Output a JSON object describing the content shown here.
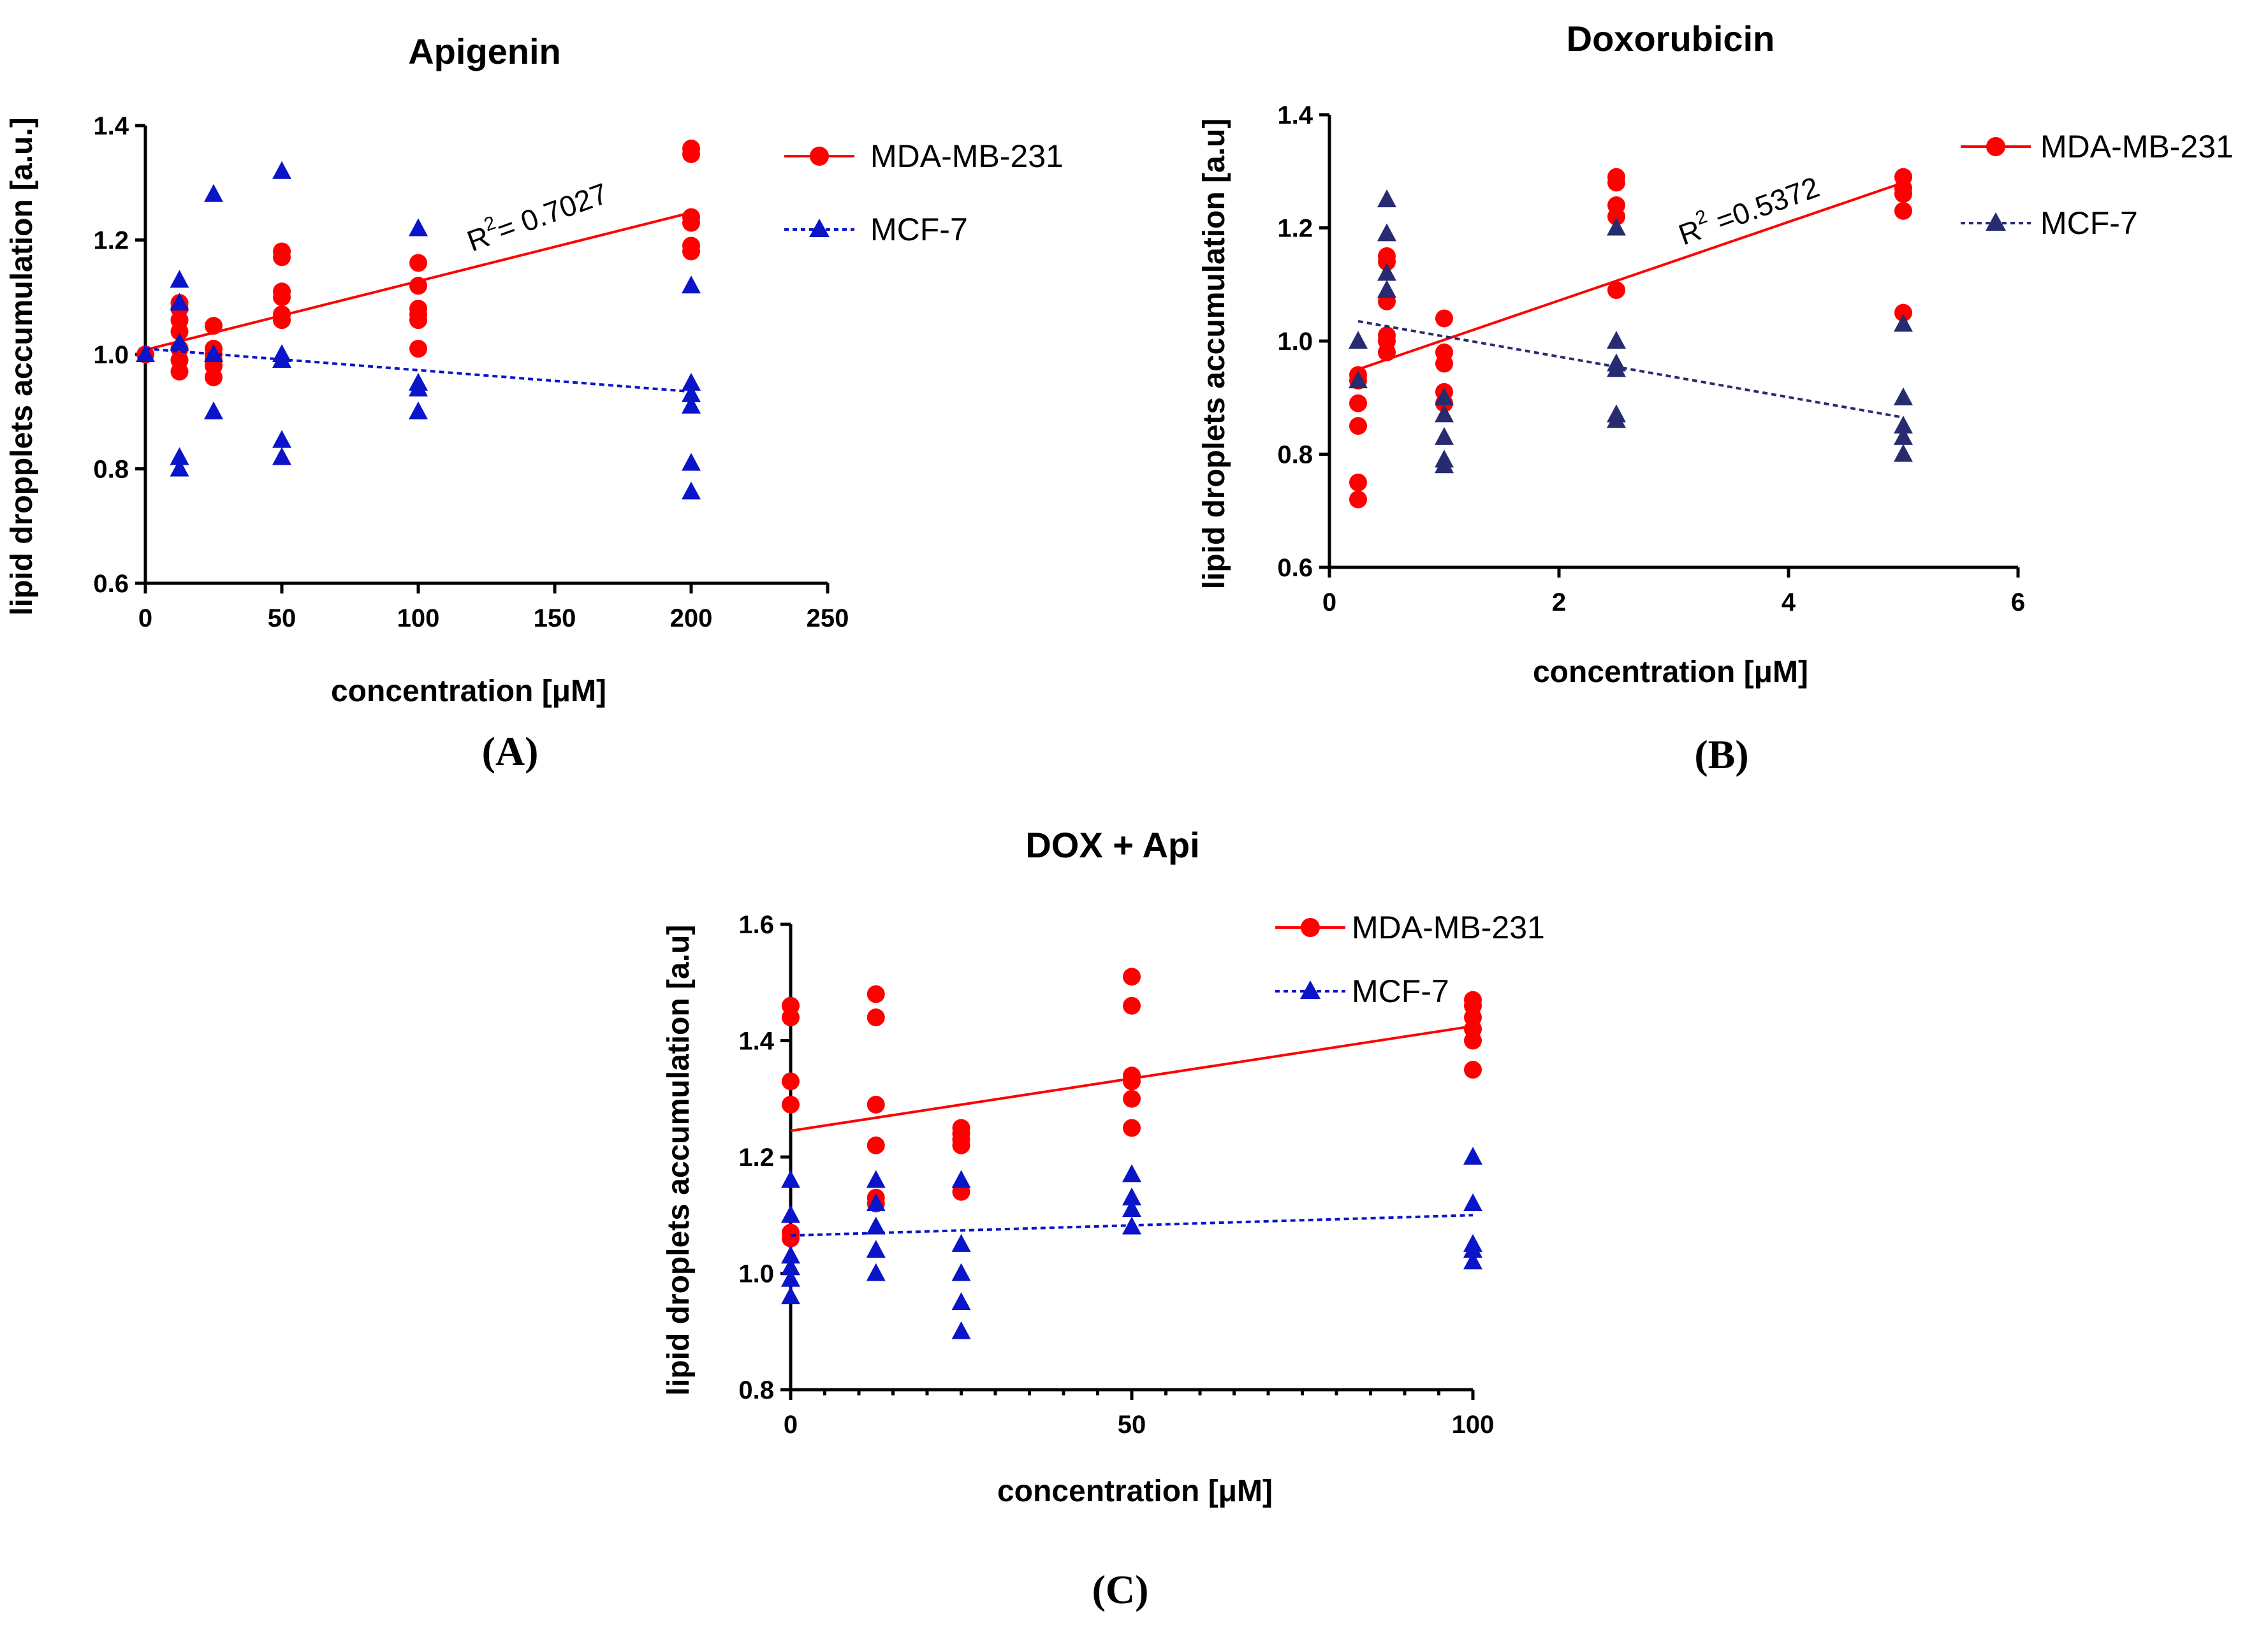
{
  "panels": [
    {
      "id": "A",
      "panel_label": "(A)",
      "r2_prefix": "R",
      "r2_exp": "2",
      "r2_value": "= 0.7027"
    },
    {
      "id": "B",
      "panel_label": "(B)",
      "r2_prefix": "R",
      "r2_exp": "2",
      "r2_value": " =0.5372"
    },
    {
      "id": "C",
      "panel_label": "(C)",
      "r2_prefix": "",
      "r2_exp": "",
      "r2_value": ""
    }
  ],
  "chart_data": [
    {
      "type": "scatter",
      "title": "Apigenin",
      "xlabel": "concentration [μM]",
      "ylabel": "lipid dropplets accumulation [a.u.]",
      "xlim": [
        0,
        250
      ],
      "ylim": [
        0.6,
        1.4
      ],
      "xticks": [
        "0",
        "50",
        "100",
        "150",
        "200",
        "250"
      ],
      "xtick_values": [
        0,
        50,
        100,
        150,
        200,
        250
      ],
      "yticks": [
        "0.6",
        "0.8",
        "1.0",
        "1.2",
        "1.4"
      ],
      "ytick_values": [
        0.6,
        0.8,
        1.0,
        1.2,
        1.4
      ],
      "x_minor_step": 0,
      "legend_position": "top-right",
      "series": [
        {
          "name": "MDA-MB-231",
          "marker": "circle",
          "color": "#ff0000",
          "line_style": "solid",
          "points": [
            [
              0,
              1.0
            ],
            [
              12.5,
              0.97
            ],
            [
              12.5,
              0.99
            ],
            [
              12.5,
              1.01
            ],
            [
              12.5,
              1.04
            ],
            [
              12.5,
              1.06
            ],
            [
              12.5,
              1.08
            ],
            [
              12.5,
              1.09
            ],
            [
              25,
              0.96
            ],
            [
              25,
              0.98
            ],
            [
              25,
              0.99
            ],
            [
              25,
              1.0
            ],
            [
              25,
              1.01
            ],
            [
              25,
              1.05
            ],
            [
              50,
              1.06
            ],
            [
              50,
              1.07
            ],
            [
              50,
              1.1
            ],
            [
              50,
              1.11
            ],
            [
              50,
              1.17
            ],
            [
              50,
              1.18
            ],
            [
              100,
              1.01
            ],
            [
              100,
              1.06
            ],
            [
              100,
              1.07
            ],
            [
              100,
              1.08
            ],
            [
              100,
              1.12
            ],
            [
              100,
              1.16
            ],
            [
              200,
              1.18
            ],
            [
              200,
              1.19
            ],
            [
              200,
              1.23
            ],
            [
              200,
              1.24
            ],
            [
              200,
              1.35
            ],
            [
              200,
              1.36
            ]
          ],
          "fit": [
            [
              0,
              1.008
            ],
            [
              200,
              1.248
            ]
          ]
        },
        {
          "name": "MCF-7",
          "marker": "triangle",
          "color": "#0a14c8",
          "line_style": "dotted",
          "points": [
            [
              0,
              1.0
            ],
            [
              12.5,
              0.8
            ],
            [
              12.5,
              0.82
            ],
            [
              12.5,
              1.02
            ],
            [
              12.5,
              1.09
            ],
            [
              12.5,
              1.13
            ],
            [
              25,
              0.9
            ],
            [
              25,
              1.0
            ],
            [
              25,
              1.28
            ],
            [
              50,
              0.82
            ],
            [
              50,
              0.85
            ],
            [
              50,
              0.99
            ],
            [
              50,
              1.0
            ],
            [
              50,
              1.32
            ],
            [
              100,
              0.9
            ],
            [
              100,
              0.94
            ],
            [
              100,
              0.95
            ],
            [
              100,
              1.22
            ],
            [
              200,
              0.76
            ],
            [
              200,
              0.81
            ],
            [
              200,
              0.91
            ],
            [
              200,
              0.93
            ],
            [
              200,
              0.95
            ],
            [
              200,
              1.12
            ]
          ],
          "fit": [
            [
              0,
              1.01
            ],
            [
              200,
              0.935
            ]
          ]
        }
      ]
    },
    {
      "type": "scatter",
      "title": "Doxorubicin",
      "xlabel": "concentration [μM]",
      "ylabel": "lipid droplets accumulation [a.u]",
      "xlim": [
        0,
        6
      ],
      "ylim": [
        0.6,
        1.4
      ],
      "xticks": [
        "0",
        "2",
        "4",
        "6"
      ],
      "xtick_values": [
        0,
        2,
        4,
        6
      ],
      "yticks": [
        "0.6",
        "0.8",
        "1.0",
        "1.2",
        "1.4"
      ],
      "ytick_values": [
        0.6,
        0.8,
        1.0,
        1.2,
        1.4
      ],
      "x_minor_step": 0,
      "legend_position": "top-right",
      "series": [
        {
          "name": "MDA-MB-231",
          "marker": "circle",
          "color": "#ff0000",
          "line_style": "solid",
          "points": [
            [
              0.25,
              0.72
            ],
            [
              0.25,
              0.75
            ],
            [
              0.25,
              0.85
            ],
            [
              0.25,
              0.89
            ],
            [
              0.25,
              0.93
            ],
            [
              0.25,
              0.94
            ],
            [
              0.5,
              0.98
            ],
            [
              0.5,
              1.0
            ],
            [
              0.5,
              1.01
            ],
            [
              0.5,
              1.07
            ],
            [
              0.5,
              1.14
            ],
            [
              0.5,
              1.15
            ],
            [
              1,
              0.89
            ],
            [
              1,
              0.91
            ],
            [
              1,
              0.96
            ],
            [
              1,
              0.98
            ],
            [
              1,
              1.04
            ],
            [
              2.5,
              1.09
            ],
            [
              2.5,
              1.22
            ],
            [
              2.5,
              1.24
            ],
            [
              2.5,
              1.28
            ],
            [
              2.5,
              1.29
            ],
            [
              5,
              1.05
            ],
            [
              5,
              1.23
            ],
            [
              5,
              1.26
            ],
            [
              5,
              1.27
            ],
            [
              5,
              1.29
            ]
          ],
          "fit": [
            [
              0.25,
              0.95
            ],
            [
              5,
              1.28
            ]
          ]
        },
        {
          "name": "MCF-7",
          "marker": "triangle",
          "color": "#272c70",
          "line_style": "dotted",
          "points": [
            [
              0.25,
              0.93
            ],
            [
              0.25,
              1.0
            ],
            [
              0.5,
              1.09
            ],
            [
              0.5,
              1.12
            ],
            [
              0.5,
              1.19
            ],
            [
              0.5,
              1.25
            ],
            [
              1,
              0.78
            ],
            [
              1,
              0.79
            ],
            [
              1,
              0.83
            ],
            [
              1,
              0.87
            ],
            [
              1,
              0.9
            ],
            [
              2.5,
              0.86
            ],
            [
              2.5,
              0.87
            ],
            [
              2.5,
              0.95
            ],
            [
              2.5,
              0.96
            ],
            [
              2.5,
              1.0
            ],
            [
              2.5,
              1.2
            ],
            [
              5,
              0.8
            ],
            [
              5,
              0.83
            ],
            [
              5,
              0.85
            ],
            [
              5,
              0.9
            ],
            [
              5,
              1.03
            ]
          ],
          "fit": [
            [
              0.25,
              1.035
            ],
            [
              5,
              0.865
            ]
          ]
        }
      ]
    },
    {
      "type": "scatter",
      "title": "DOX +  Api",
      "xlabel": "concentration [μM]",
      "ylabel": "lipid droplets accumulation [a.u]",
      "xlim": [
        0,
        100
      ],
      "ylim": [
        0.8,
        1.6
      ],
      "xticks": [
        "0",
        "50",
        "100"
      ],
      "xtick_values": [
        0,
        50,
        100
      ],
      "yticks": [
        "0.8",
        "1.0",
        "1.2",
        "1.4",
        "1.6"
      ],
      "ytick_values": [
        0.8,
        1.0,
        1.2,
        1.4,
        1.6
      ],
      "x_minor_step": 5,
      "legend_position": "top-right",
      "series": [
        {
          "name": "MDA-MB-231",
          "marker": "circle",
          "color": "#ff0000",
          "line_style": "solid",
          "points": [
            [
              0,
              1.06
            ],
            [
              0,
              1.07
            ],
            [
              0,
              1.29
            ],
            [
              0,
              1.33
            ],
            [
              0,
              1.44
            ],
            [
              0,
              1.46
            ],
            [
              12.5,
              1.12
            ],
            [
              12.5,
              1.13
            ],
            [
              12.5,
              1.22
            ],
            [
              12.5,
              1.29
            ],
            [
              12.5,
              1.44
            ],
            [
              12.5,
              1.48
            ],
            [
              25,
              1.14
            ],
            [
              25,
              1.22
            ],
            [
              25,
              1.23
            ],
            [
              25,
              1.24
            ],
            [
              25,
              1.25
            ],
            [
              50,
              1.25
            ],
            [
              50,
              1.3
            ],
            [
              50,
              1.33
            ],
            [
              50,
              1.34
            ],
            [
              50,
              1.46
            ],
            [
              50,
              1.51
            ],
            [
              100,
              1.35
            ],
            [
              100,
              1.4
            ],
            [
              100,
              1.42
            ],
            [
              100,
              1.44
            ],
            [
              100,
              1.46
            ],
            [
              100,
              1.47
            ]
          ],
          "fit": [
            [
              0,
              1.245
            ],
            [
              100,
              1.425
            ]
          ]
        },
        {
          "name": "MCF-7",
          "marker": "triangle",
          "color": "#0a14c8",
          "line_style": "dotted",
          "points": [
            [
              0,
              0.96
            ],
            [
              0,
              0.99
            ],
            [
              0,
              1.01
            ],
            [
              0,
              1.03
            ],
            [
              0,
              1.1
            ],
            [
              0,
              1.16
            ],
            [
              12.5,
              1.0
            ],
            [
              12.5,
              1.04
            ],
            [
              12.5,
              1.08
            ],
            [
              12.5,
              1.12
            ],
            [
              12.5,
              1.16
            ],
            [
              25,
              0.9
            ],
            [
              25,
              0.95
            ],
            [
              25,
              1.0
            ],
            [
              25,
              1.05
            ],
            [
              25,
              1.16
            ],
            [
              50,
              1.08
            ],
            [
              50,
              1.11
            ],
            [
              50,
              1.13
            ],
            [
              50,
              1.17
            ],
            [
              100,
              1.02
            ],
            [
              100,
              1.04
            ],
            [
              100,
              1.05
            ],
            [
              100,
              1.12
            ],
            [
              100,
              1.2
            ]
          ],
          "fit": [
            [
              0,
              1.065
            ],
            [
              100,
              1.1
            ]
          ]
        }
      ]
    }
  ]
}
